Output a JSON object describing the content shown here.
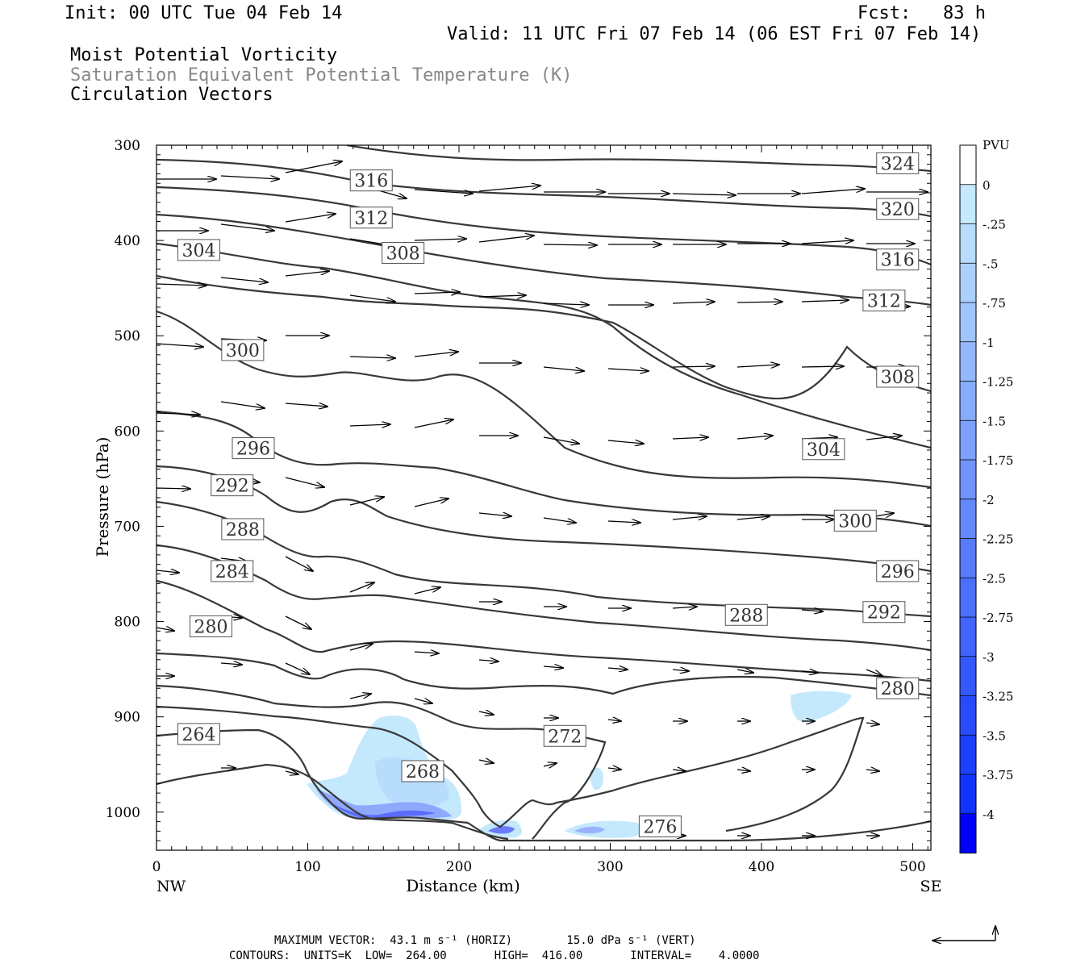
{
  "header": {
    "init": "Init: 00 UTC Tue 04 Feb 14",
    "fcst": "Fcst:   83 h",
    "valid": "Valid: 11 UTC Fri 07 Feb 14 (06 EST Fri 07 Feb 14)"
  },
  "titles": {
    "line1": "Moist Potential Vorticity",
    "line2": "Saturation Equivalent Potential Temperature (K)",
    "line3": "Circulation Vectors"
  },
  "colors": {
    "title2": "#888888",
    "contour": "#383838",
    "pv_scale": [
      "#ffffff",
      "#ffffff",
      "#c4e8fc",
      "#b8dcfc",
      "#acd0fc",
      "#a0c4fc",
      "#94b8fc",
      "#88acfc",
      "#7ca0fc",
      "#7094fc",
      "#6488fc",
      "#587cfc",
      "#4c70fc",
      "#4064fc",
      "#3458fc",
      "#284cfc",
      "#1c40fc",
      "#1034fc",
      "#0000fc"
    ]
  },
  "footer": {
    "line1": "MAXIMUM VECTOR:  43.1 m s⁻¹ (HORIZ)        15.0 dPa s⁻¹ (VERT)",
    "line2": "CONTOURS:  UNITS=K  LOW=  264.00       HIGH=  416.00       INTERVAL=    4.0000"
  },
  "chart_data": {
    "type": "cross-section",
    "xlabel": "Distance (km)",
    "ylabel": "Pressure (hPa)",
    "xlim": [
      0,
      512
    ],
    "ylim": [
      1040,
      300
    ],
    "x_ticks": [
      0,
      100,
      200,
      300,
      400,
      500
    ],
    "y_ticks": [
      300,
      400,
      500,
      600,
      700,
      800,
      900,
      1000
    ],
    "x_end_labels": [
      "NW",
      "SE"
    ],
    "colorbar": {
      "title": "PVU",
      "labels": [
        "0",
        "-.25",
        "-.5",
        "-.75",
        "-1",
        "-1.25",
        "-1.5",
        "-1.75",
        "-2",
        "-2.25",
        "-2.5",
        "-2.75",
        "-3",
        "-3.25",
        "-3.5",
        "-3.75",
        "-4"
      ]
    },
    "contour_labels": [
      {
        "text": "324",
        "x": 490,
        "p": 319
      },
      {
        "text": "316",
        "x": 142,
        "p": 337
      },
      {
        "text": "320",
        "x": 490,
        "p": 367
      },
      {
        "text": "312",
        "x": 142,
        "p": 376
      },
      {
        "text": "304",
        "x": 28,
        "p": 410
      },
      {
        "text": "308",
        "x": 163,
        "p": 413
      },
      {
        "text": "316",
        "x": 490,
        "p": 420
      },
      {
        "text": "312",
        "x": 481,
        "p": 463
      },
      {
        "text": "300",
        "x": 57,
        "p": 515
      },
      {
        "text": "308",
        "x": 490,
        "p": 543
      },
      {
        "text": "296",
        "x": 64,
        "p": 618
      },
      {
        "text": "304",
        "x": 441,
        "p": 619
      },
      {
        "text": "292",
        "x": 50,
        "p": 657
      },
      {
        "text": "288",
        "x": 57,
        "p": 703
      },
      {
        "text": "300",
        "x": 462,
        "p": 694
      },
      {
        "text": "284",
        "x": 50,
        "p": 747
      },
      {
        "text": "296",
        "x": 490,
        "p": 747
      },
      {
        "text": "288",
        "x": 390,
        "p": 793
      },
      {
        "text": "292",
        "x": 481,
        "p": 790
      },
      {
        "text": "280",
        "x": 36,
        "p": 805
      },
      {
        "text": "280",
        "x": 490,
        "p": 870
      },
      {
        "text": "264",
        "x": 28,
        "p": 918
      },
      {
        "text": "272",
        "x": 270,
        "p": 920
      },
      {
        "text": "268",
        "x": 176,
        "p": 957
      },
      {
        "text": "276",
        "x": 333,
        "p": 1015
      }
    ]
  }
}
